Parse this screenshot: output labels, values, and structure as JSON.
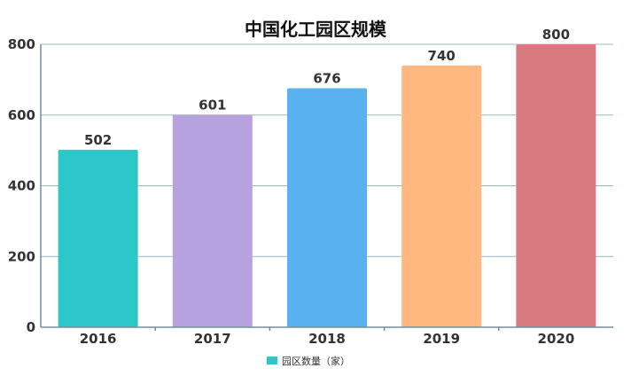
{
  "chart_data": {
    "type": "bar",
    "title": "中国化工园区规模",
    "categories": [
      "2016",
      "2017",
      "2018",
      "2019",
      "2020"
    ],
    "series": [
      {
        "name": "园区数量（家）",
        "values": [
          502,
          601,
          676,
          740,
          800
        ]
      }
    ],
    "bar_colors": [
      "#2ec7c9",
      "#b6a2de",
      "#5ab1ef",
      "#ffb980",
      "#d87a80"
    ],
    "ylim": [
      0,
      800
    ],
    "yticks": [
      "0",
      "200",
      "400",
      "600",
      "800"
    ],
    "grid": true,
    "legend_position": "bottom-center"
  }
}
